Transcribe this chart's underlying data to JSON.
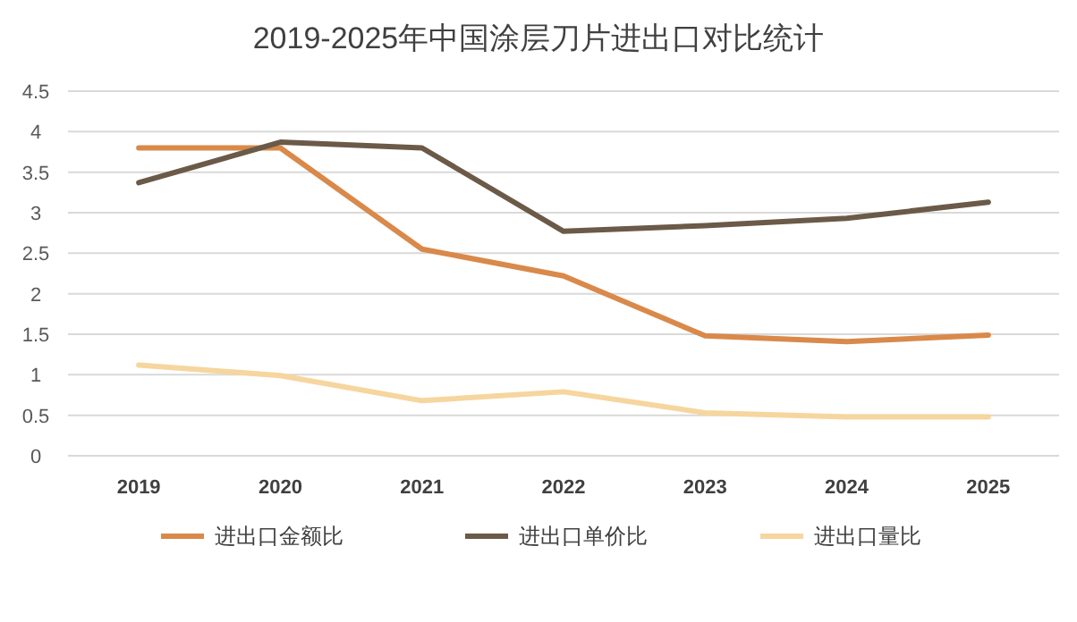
{
  "chart_data": {
    "type": "line",
    "title": "2019-2025年中国涂层刀片进出口对比统计",
    "categories": [
      "2019",
      "2020",
      "2021",
      "2022",
      "2023",
      "2024",
      "2025"
    ],
    "series": [
      {
        "name": "进出口金额比",
        "color": "#d9894a",
        "values": [
          3.8,
          3.8,
          2.55,
          2.22,
          1.48,
          1.41,
          1.49
        ]
      },
      {
        "name": "进出口单价比",
        "color": "#6b5a48",
        "values": [
          3.37,
          3.87,
          3.8,
          2.77,
          2.84,
          2.93,
          3.13
        ]
      },
      {
        "name": "进出口量比",
        "color": "#f6d69e",
        "values": [
          1.12,
          0.99,
          0.68,
          0.79,
          0.53,
          0.48,
          0.48
        ]
      }
    ],
    "ylim": [
      0,
      4.5
    ],
    "yticks": [
      0,
      0.5,
      1,
      1.5,
      2,
      2.5,
      3,
      3.5,
      4,
      4.5
    ],
    "grid": "y",
    "legend": "bottom",
    "marker": "none",
    "line_style": "solid"
  }
}
